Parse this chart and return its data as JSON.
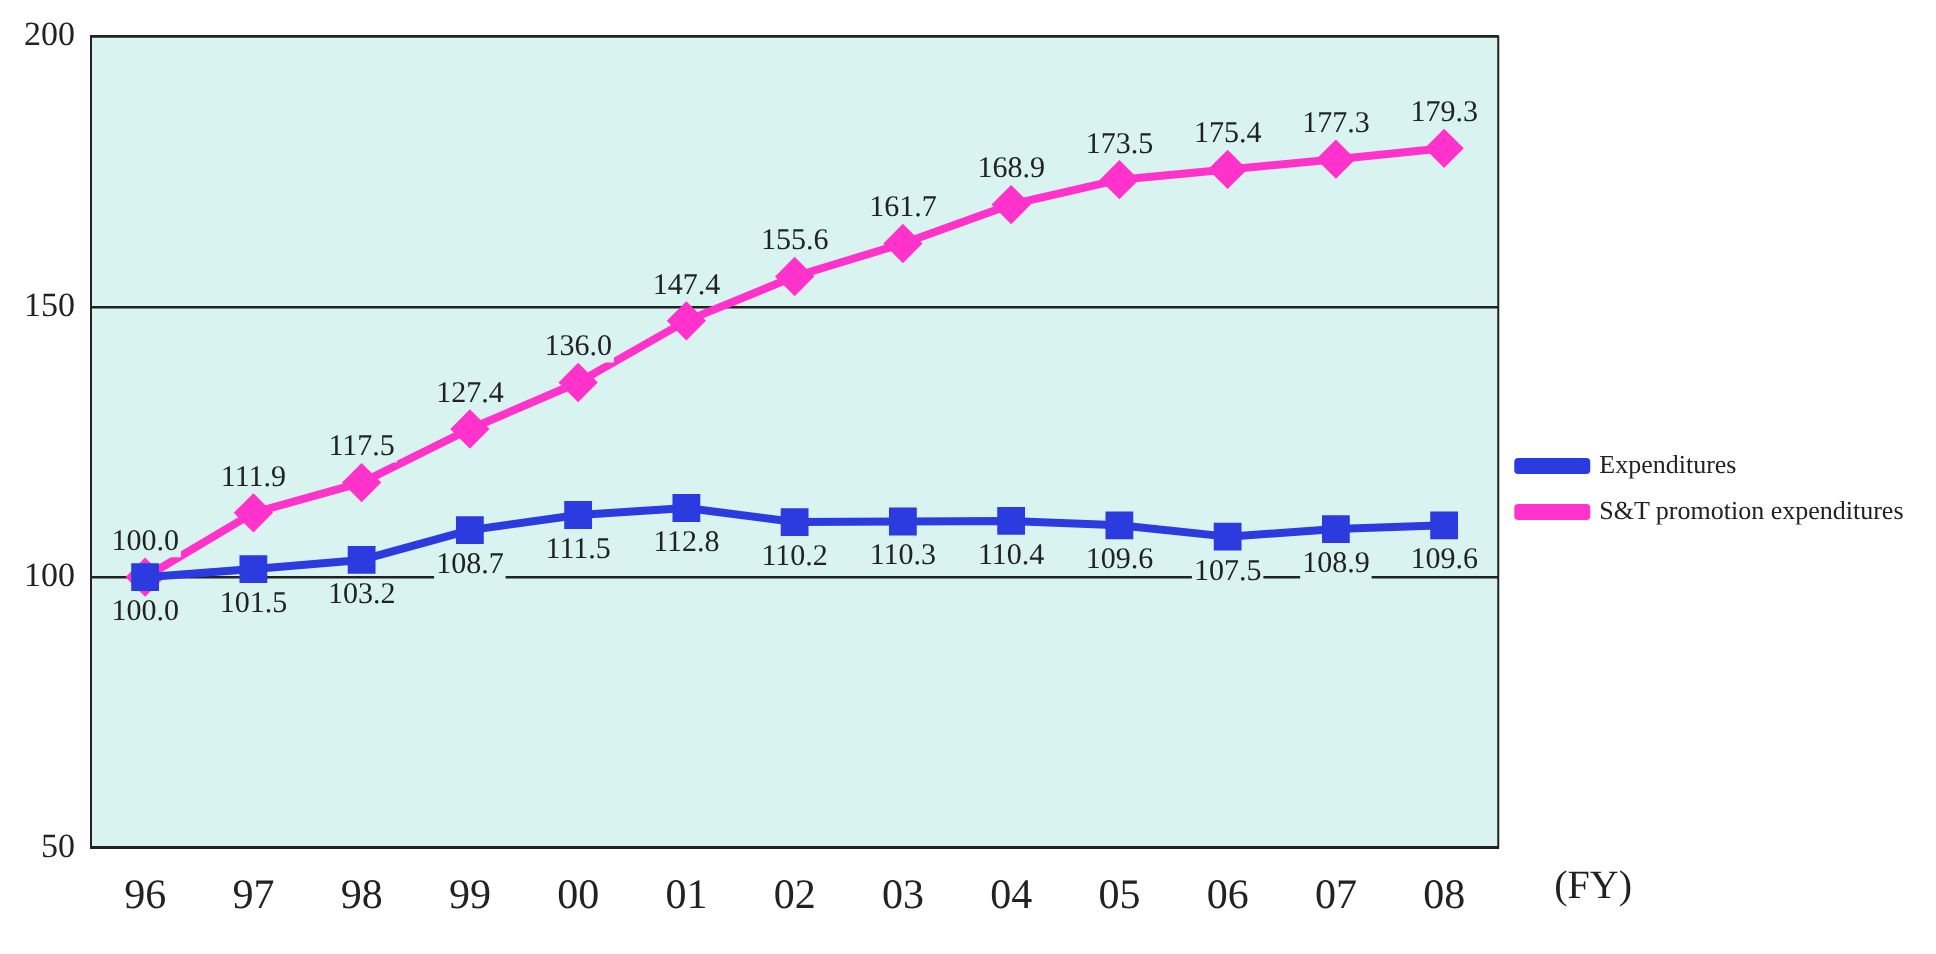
{
  "chart_data": {
    "type": "line",
    "categories": [
      "96",
      "97",
      "98",
      "99",
      "00",
      "01",
      "02",
      "03",
      "04",
      "05",
      "06",
      "07",
      "08"
    ],
    "xlabel": "(FY)",
    "series": [
      {
        "name": "Expenditures",
        "color": "#2b3be0",
        "marker": "square",
        "values": [
          100.0,
          101.5,
          103.2,
          108.7,
          111.5,
          112.8,
          110.2,
          110.3,
          110.4,
          109.6,
          107.5,
          108.9,
          109.6
        ],
        "value_labels": [
          "100.0",
          "101.5",
          "103.2",
          "108.7",
          "111.5",
          "112.8",
          "110.2",
          "110.3",
          "110.4",
          "109.6",
          "107.5",
          "108.9",
          "109.6"
        ]
      },
      {
        "name": "S&T promotion expenditures",
        "color": "#ff33cc",
        "marker": "diamond",
        "values": [
          100.0,
          111.9,
          117.5,
          127.4,
          136.0,
          147.4,
          155.6,
          161.7,
          168.9,
          173.5,
          175.4,
          177.3,
          179.3
        ],
        "value_labels": [
          "100.0",
          "111.9",
          "117.5",
          "127.4",
          "136.0",
          "147.4",
          "155.6",
          "161.7",
          "168.9",
          "173.5",
          "175.4",
          "177.3",
          "179.3"
        ]
      }
    ],
    "ylim": [
      50,
      200
    ],
    "yticks": [
      50,
      100,
      150,
      200
    ],
    "grid": "y",
    "legend": "right"
  }
}
